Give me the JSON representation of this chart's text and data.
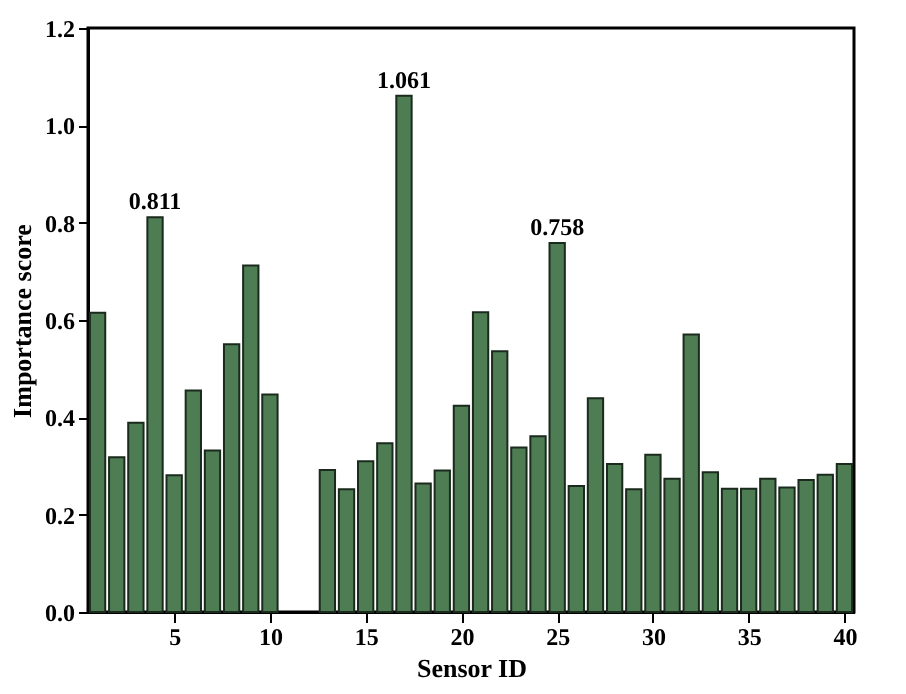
{
  "chart_data": {
    "type": "bar",
    "xlabel": "Sensor ID",
    "ylabel": "Importance score",
    "x": [
      1,
      2,
      3,
      4,
      5,
      6,
      7,
      8,
      9,
      10,
      11,
      12,
      13,
      14,
      15,
      16,
      17,
      18,
      19,
      20,
      21,
      22,
      23,
      24,
      25,
      26,
      27,
      28,
      29,
      30,
      31,
      32,
      33,
      34,
      35,
      36,
      37,
      38,
      39,
      40
    ],
    "values": [
      0.615,
      0.318,
      0.389,
      0.811,
      0.281,
      0.455,
      0.332,
      0.55,
      0.712,
      0.447,
      null,
      null,
      0.292,
      0.252,
      0.31,
      0.347,
      1.061,
      0.264,
      0.291,
      0.424,
      0.616,
      0.536,
      0.338,
      0.361,
      0.758,
      0.259,
      0.439,
      0.304,
      0.252,
      0.323,
      0.274,
      0.57,
      0.287,
      0.253,
      0.253,
      0.274,
      0.256,
      0.271,
      0.282,
      0.304
    ],
    "value_labels": [
      null,
      null,
      null,
      "0.811",
      null,
      null,
      null,
      null,
      null,
      null,
      null,
      null,
      null,
      null,
      null,
      null,
      "1.061",
      null,
      null,
      null,
      null,
      null,
      null,
      null,
      "0.758",
      null,
      null,
      null,
      null,
      null,
      null,
      null,
      null,
      null,
      null,
      null,
      null,
      null,
      null,
      null
    ],
    "color": "#4e7d54",
    "xlim": [
      0.5,
      40.5
    ],
    "xticks": [
      5,
      10,
      15,
      20,
      25,
      30,
      35,
      40
    ],
    "ylim": [
      0,
      1.2
    ],
    "yticks": [
      {
        "value": 0,
        "label": "0.0"
      },
      0.2,
      0.4,
      0.6,
      0.8,
      {
        "value": 1,
        "label": "1.0"
      },
      1.2
    ],
    "grid": false
  }
}
